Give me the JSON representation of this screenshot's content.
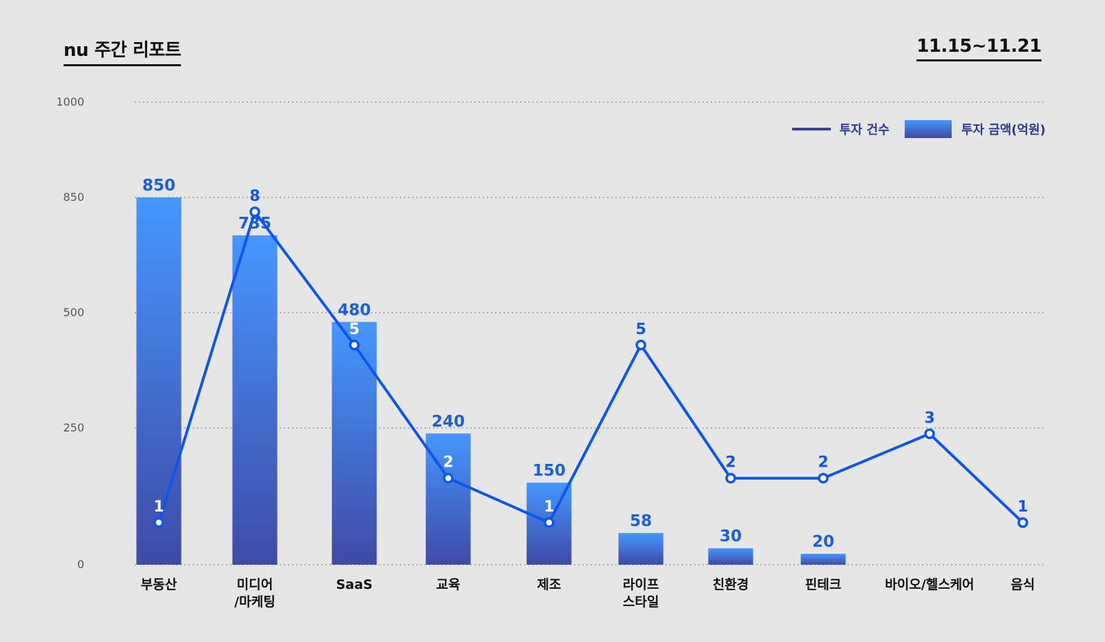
{
  "header": {
    "title": "nu 주간 리포트",
    "date_range": "11.15~11.21"
  },
  "legend": {
    "line_label": "투자 건수",
    "bar_label": "투자 금액(억원)"
  },
  "colors": {
    "background": "#e6e6e7",
    "bar_top": "#4597ff",
    "bar_bottom": "#3f4aa6",
    "line": "#0f56e8",
    "label": "#1d5fd6"
  },
  "chart_data": {
    "type": "bar",
    "categories": [
      "부동산",
      "미디어\n/마케팅",
      "SaaS",
      "교육",
      "제조",
      "라이프\n스타일",
      "친환경",
      "핀테크",
      "바이오/헬스케어",
      "음식"
    ],
    "yticks": [
      0,
      250,
      500,
      850,
      1000
    ],
    "ylim": [
      0,
      1000
    ],
    "grid": true,
    "legend_position": "top-right",
    "series": [
      {
        "name": "투자 금액(억원)",
        "type": "bar",
        "values": [
          850,
          735,
          480,
          240,
          150,
          58,
          30,
          20,
          null,
          null
        ]
      },
      {
        "name": "투자 건수",
        "type": "line",
        "values": [
          1,
          8,
          5,
          2,
          1,
          5,
          2,
          2,
          3,
          1
        ]
      }
    ]
  }
}
